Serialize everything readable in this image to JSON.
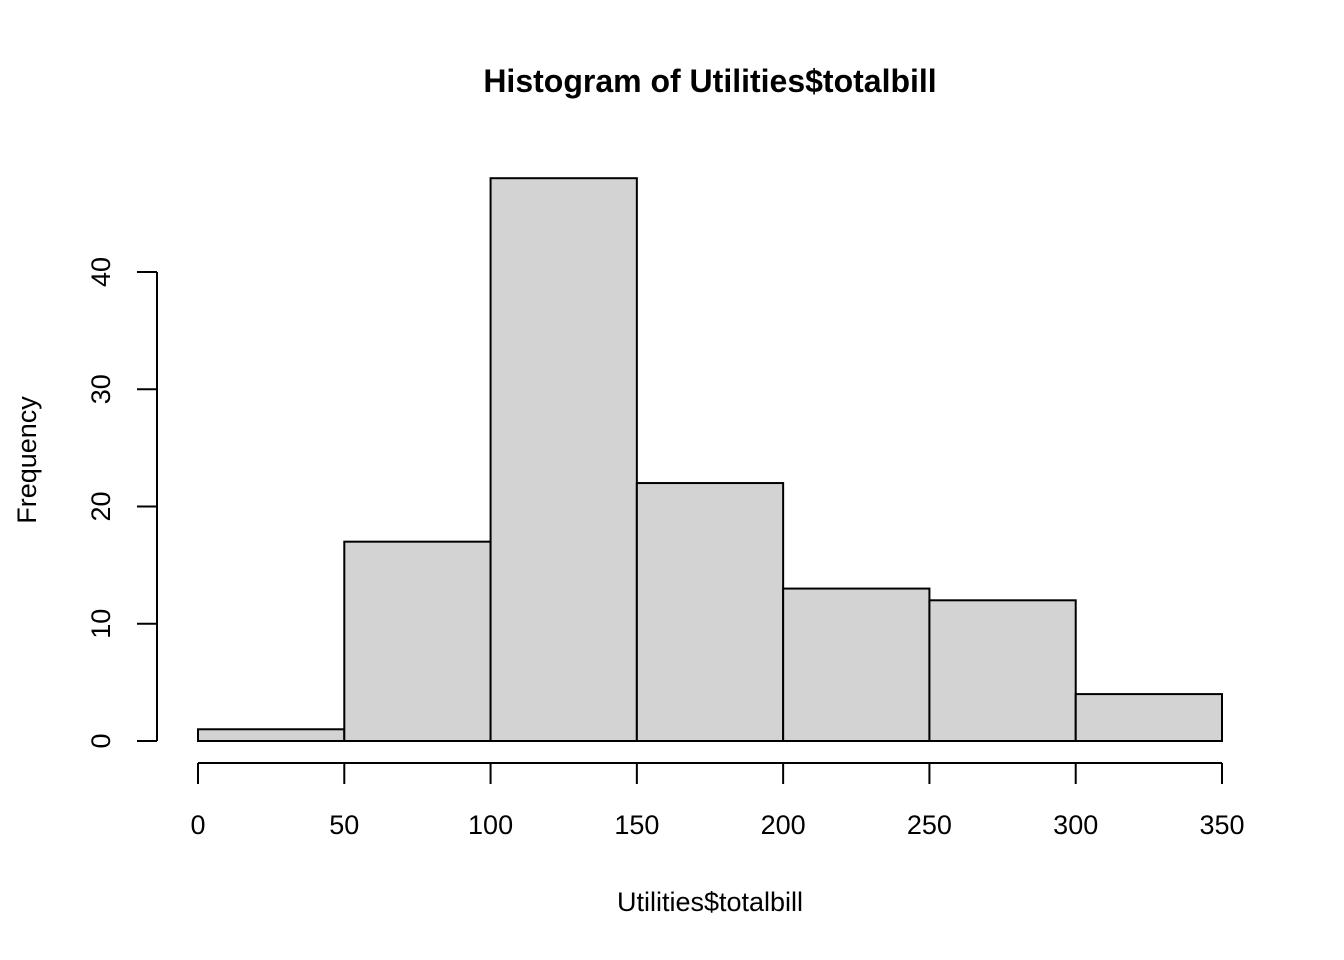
{
  "chart_data": {
    "type": "bar",
    "title": "Histogram of Utilities$totalbill",
    "xlabel": "Utilities$totalbill",
    "ylabel": "Frequency",
    "bins": [
      {
        "from": 0,
        "to": 50,
        "count": 1
      },
      {
        "from": 50,
        "to": 100,
        "count": 17
      },
      {
        "from": 100,
        "to": 150,
        "count": 48
      },
      {
        "from": 150,
        "to": 200,
        "count": 22
      },
      {
        "from": 200,
        "to": 250,
        "count": 13
      },
      {
        "from": 250,
        "to": 300,
        "count": 12
      },
      {
        "from": 300,
        "to": 350,
        "count": 4
      }
    ],
    "xticks": [
      "0",
      "50",
      "100",
      "150",
      "200",
      "250",
      "300",
      "350"
    ],
    "yticks": [
      "0",
      "10",
      "20",
      "30",
      "40"
    ],
    "xlim": [
      0,
      350
    ],
    "ylim": [
      0,
      48
    ],
    "grid": false,
    "bar_color": "#d3d3d3",
    "border_color": "#000000"
  }
}
